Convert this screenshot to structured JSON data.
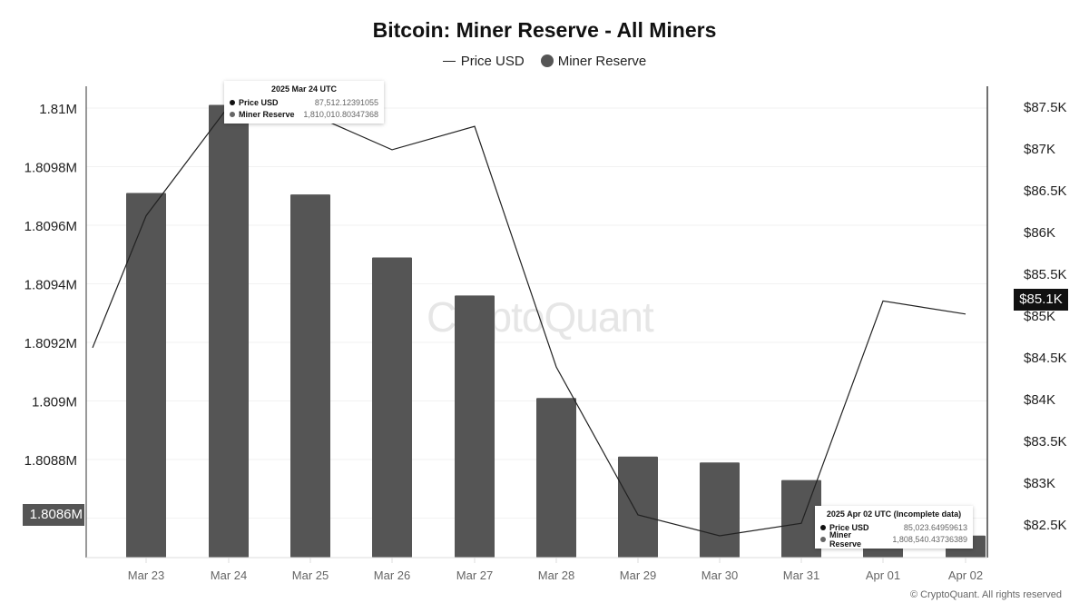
{
  "title": "Bitcoin: Miner Reserve - All Miners",
  "legend": {
    "price_label": "Price USD",
    "reserve_label": "Miner Reserve"
  },
  "watermark": "CryptoQuant",
  "copyright": "© CryptoQuant. All rights reserved",
  "highlight": {
    "left_axis": "1.8086M",
    "right_axis": "$85.1K"
  },
  "tooltips": [
    {
      "date": "2025 Mar 24 UTC",
      "price_label": "Price USD",
      "price_value": "87,512.12391055",
      "reserve_label": "Miner Reserve",
      "reserve_value": "1,810,010.80347368"
    },
    {
      "date": "2025 Apr 02 UTC (Incomplete data)",
      "price_label": "Price USD",
      "price_value": "85,023.64959613",
      "reserve_label": "Miner Reserve",
      "reserve_value": "1,808,540.43736389"
    }
  ],
  "colors": {
    "bar": "#555555",
    "line": "#222222",
    "axis": "#555555"
  },
  "chart_data": {
    "type": "bar",
    "title": "Bitcoin: Miner Reserve - All Miners",
    "xlabel": "",
    "ylabel": "Miner Reserve",
    "y2label": "Price USD",
    "categories": [
      "Mar 23",
      "Mar 24",
      "Mar 25",
      "Mar 26",
      "Mar 27",
      "Mar 28",
      "Mar 29",
      "Mar 30",
      "Mar 31",
      "Apr 01",
      "Apr 02"
    ],
    "series": [
      {
        "name": "Miner Reserve",
        "type": "bar",
        "axis": "left",
        "values": [
          1809710,
          1810010.8,
          1809705,
          1809490,
          1809360,
          1809010,
          1808810,
          1808790,
          1808730,
          1808550,
          1808540.4
        ]
      },
      {
        "name": "Price USD",
        "type": "line",
        "axis": "right",
        "values": [
          86200,
          87512.1,
          87420,
          86990,
          87270,
          84390,
          82620,
          82370,
          82520,
          85180,
          85023.6
        ],
        "leading_value": 84620
      }
    ],
    "left_ticks": [
      "1.81M",
      "1.8098M",
      "1.8096M",
      "1.8094M",
      "1.8092M",
      "1.809M",
      "1.8088M",
      "1.8086M"
    ],
    "right_ticks": [
      "$87.5K",
      "$87K",
      "$86.5K",
      "$86K",
      "$85.5K",
      "$85K",
      "$84.5K",
      "$84K",
      "$83.5K",
      "$83K",
      "$82.5K"
    ],
    "ylim": [
      1808450,
      1810000
    ],
    "y2lim": [
      82000,
      87500
    ],
    "grid": true,
    "legend_position": "top"
  }
}
